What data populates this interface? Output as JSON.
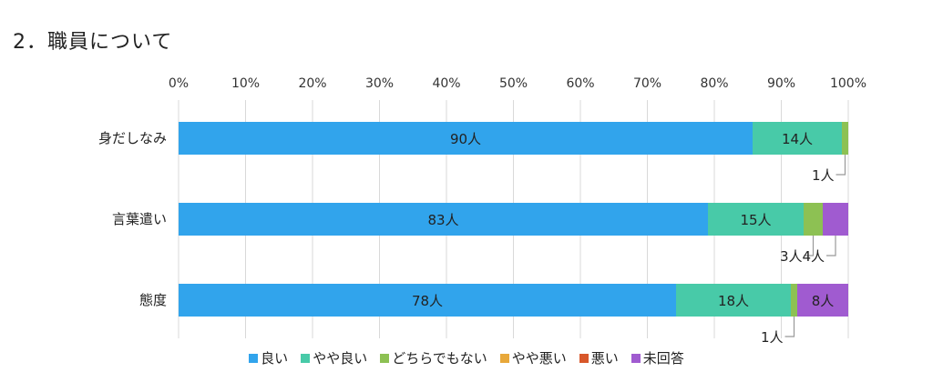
{
  "heading": "2．職員について",
  "chart_data": {
    "type": "bar",
    "orientation": "horizontal",
    "stacked": "percent",
    "categories": [
      "身だしなみ",
      "言葉遣い",
      "態度"
    ],
    "xlim": [
      0,
      100
    ],
    "x_ticks": [
      "0%",
      "10%",
      "20%",
      "30%",
      "40%",
      "50%",
      "60%",
      "70%",
      "80%",
      "90%",
      "100%"
    ],
    "grid": true,
    "legend_position": "bottom",
    "series": [
      {
        "name": "良い",
        "color": "#31A4EC",
        "values": [
          90,
          83,
          78
        ],
        "labels": [
          "90人",
          "83人",
          "78人"
        ]
      },
      {
        "name": "やや良い",
        "color": "#48CAA8",
        "values": [
          14,
          15,
          18
        ],
        "labels": [
          "14人",
          "15人",
          "18人"
        ]
      },
      {
        "name": "どちらでもない",
        "color": "#8DC153",
        "values": [
          1,
          3,
          1
        ],
        "labels": [
          "1人",
          "3人",
          "1人"
        ]
      },
      {
        "name": "やや悪い",
        "color": "#E8A83A",
        "values": [
          0,
          0,
          0
        ],
        "labels": [
          "",
          "",
          ""
        ]
      },
      {
        "name": "悪い",
        "color": "#D8572A",
        "values": [
          0,
          0,
          0
        ],
        "labels": [
          "",
          "",
          ""
        ]
      },
      {
        "name": "未回答",
        "color": "#A05BD0",
        "values": [
          0,
          4,
          8
        ],
        "labels": [
          "",
          "4人",
          "8人"
        ]
      }
    ]
  }
}
